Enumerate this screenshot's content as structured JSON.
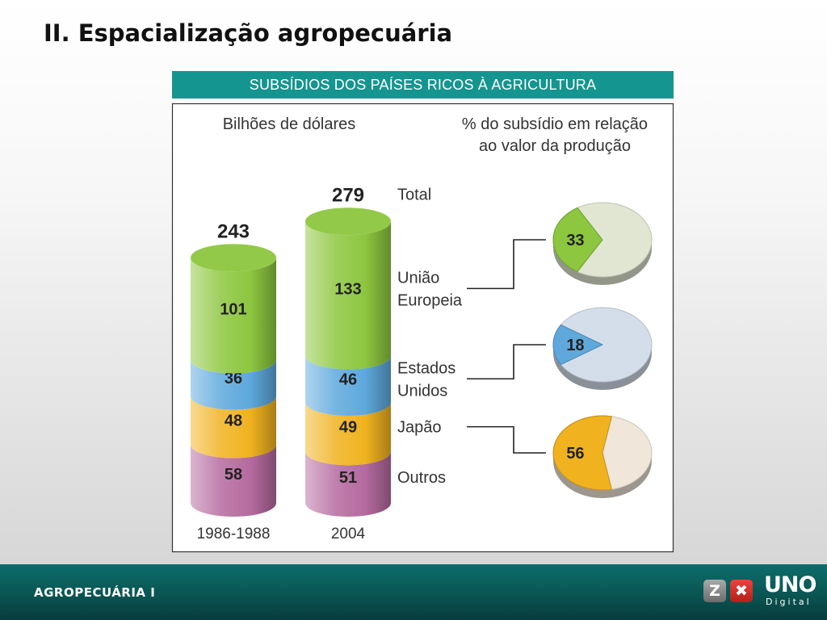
{
  "slide": {
    "title": "II. Espacialização agropecuária"
  },
  "footer": {
    "label": "AGROPECUÁRIA I",
    "logo_text": "UNO",
    "logo_subtext": "Digital",
    "badge_left": "Z",
    "badge_right": "✖"
  },
  "colors": {
    "accent_teal": "#15958f",
    "uniao_europeia": "#8dc63f",
    "estados_unidos": "#5ea8dc",
    "japao": "#f0b21f",
    "outros": "#b56a9f"
  },
  "chart_data": {
    "type": "bar",
    "stacked": true,
    "title": "SUBSÍDIOS DOS PAÍSES RICOS À AGRICULTURA",
    "left_heading": "Bilhões de dólares",
    "right_heading": [
      "% do subsídio em relação",
      "ao valor da produção"
    ],
    "total_label": "Total",
    "categories": [
      "1986-1988",
      "2004"
    ],
    "totals": [
      243,
      279
    ],
    "series": [
      {
        "name": [
          "Outros"
        ],
        "values": [
          58,
          51
        ],
        "color": "#b56a9f"
      },
      {
        "name": [
          "Japão"
        ],
        "values": [
          48,
          49
        ],
        "color": "#f0b21f"
      },
      {
        "name": [
          "Estados",
          "Unidos"
        ],
        "values": [
          36,
          46
        ],
        "color": "#5ea8dc"
      },
      {
        "name": [
          "União",
          "Europeia"
        ],
        "values": [
          101,
          133
        ],
        "color": "#8dc63f"
      }
    ],
    "pies": [
      {
        "name": "União Europeia",
        "value": 33,
        "color": "#8dc63f",
        "rest_color": "#e0e6d1"
      },
      {
        "name": "Estados Unidos",
        "value": 18,
        "color": "#5ea8dc",
        "rest_color": "#d4deea"
      },
      {
        "name": "Japão",
        "value": 56,
        "color": "#f0b21f",
        "rest_color": "#f0e6da"
      }
    ]
  }
}
